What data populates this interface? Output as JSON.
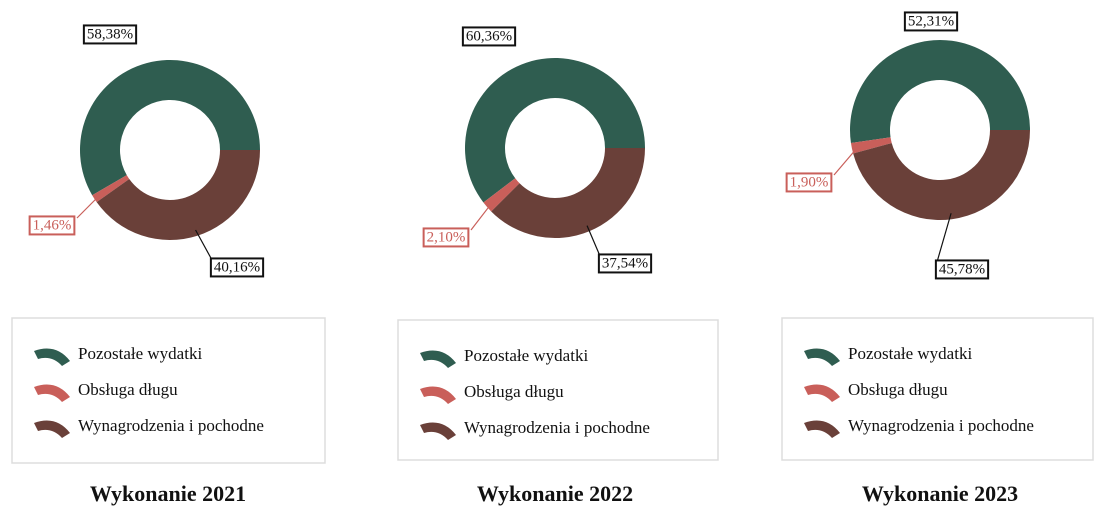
{
  "chart_data": [
    {
      "type": "donut",
      "title": "Wykonanie 2021",
      "categories": [
        "Pozostałe wydatki",
        "Obsługa długu",
        "Wynagrodzenia i pochodne"
      ],
      "values": [
        58.38,
        1.46,
        40.16
      ],
      "value_labels": [
        "58,38%",
        "1,46%",
        "40,16%"
      ],
      "colors": [
        "#2f5d50",
        "#c95f5a",
        "#6a4039"
      ]
    },
    {
      "type": "donut",
      "title": "Wykonanie 2022",
      "categories": [
        "Pozostałe wydatki",
        "Obsługa długu",
        "Wynagrodzenia i pochodne"
      ],
      "values": [
        60.36,
        2.1,
        37.54
      ],
      "value_labels": [
        "60,36%",
        "2,10%",
        "37,54%"
      ],
      "colors": [
        "#2f5d50",
        "#c95f5a",
        "#6a4039"
      ]
    },
    {
      "type": "donut",
      "title": "Wykonanie 2023",
      "categories": [
        "Pozostałe wydatki",
        "Obsługa długu",
        "Wynagrodzenia i pochodne"
      ],
      "values": [
        52.31,
        1.9,
        45.78
      ],
      "value_labels": [
        "52,31%",
        "1,90%",
        "45,78%"
      ],
      "colors": [
        "#2f5d50",
        "#c95f5a",
        "#6a4039"
      ]
    }
  ]
}
